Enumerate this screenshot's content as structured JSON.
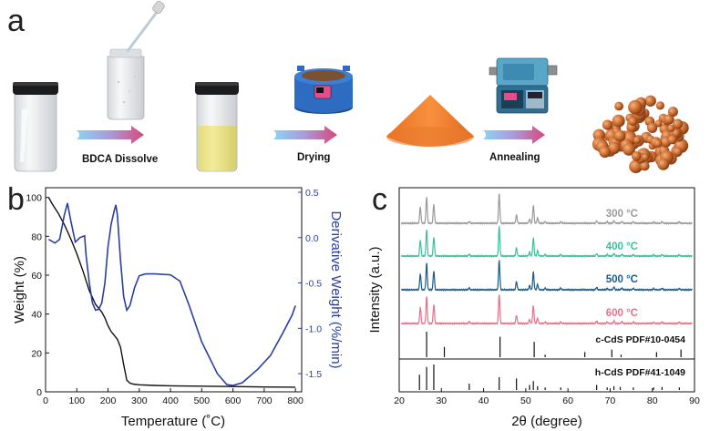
{
  "panels": {
    "a": "a",
    "b": "b",
    "c": "c"
  },
  "synthesis": {
    "steps": [
      "BDCA Dissolve",
      "Drying",
      "Annealing"
    ]
  },
  "colors": {
    "tga": "#111111",
    "dtg": "#2b3f9c",
    "xrd_300": "#9a9a9a",
    "xrd_400": "#3fbf99",
    "xrd_500": "#1f5a86",
    "xrd_600": "#e2738a",
    "arrow_start": "#8fd3f0",
    "arrow_end": "#d9487a",
    "cone": "#f07a2c",
    "particle": "#c0622a"
  },
  "chart_data": [
    {
      "type": "line",
      "title": "",
      "xlabel": "Temperature (˚C)",
      "ylabel": "Weight (%)",
      "y2label": "Derivative Weight (%/min)",
      "xlim": [
        0,
        820
      ],
      "ylim": [
        0,
        105
      ],
      "y2lim": [
        -1.7,
        0.55
      ],
      "xticks": [
        "0",
        "100",
        "200",
        "300",
        "400",
        "500",
        "600",
        "700",
        "800"
      ],
      "yticks": [
        "0",
        "20",
        "40",
        "60",
        "80",
        "100"
      ],
      "y2ticks": [
        "0.5",
        "0.0",
        "-0.5",
        "-1.0",
        "-1.5"
      ],
      "series": [
        {
          "name": "Weight",
          "axis": "left",
          "x": [
            10,
            20,
            40,
            60,
            80,
            100,
            120,
            140,
            160,
            170,
            180,
            190,
            200,
            210,
            220,
            230,
            240,
            250,
            260,
            270,
            280,
            300,
            350,
            400,
            500,
            600,
            700,
            800
          ],
          "values": [
            100,
            97,
            92,
            86,
            79,
            71,
            62,
            52,
            45,
            43,
            41,
            38,
            34,
            31,
            29,
            27,
            23,
            14,
            6,
            4.5,
            4,
            3.6,
            3.3,
            3.1,
            2.9,
            2.7,
            2.5,
            2.4
          ]
        },
        {
          "name": "Derivative Weight",
          "axis": "right",
          "x": [
            10,
            30,
            45,
            60,
            70,
            80,
            95,
            110,
            125,
            130,
            140,
            150,
            160,
            170,
            180,
            190,
            200,
            210,
            220,
            225,
            230,
            240,
            250,
            260,
            270,
            285,
            300,
            320,
            350,
            400,
            430,
            460,
            500,
            550,
            580,
            600,
            630,
            680,
            720,
            760,
            790,
            800
          ],
          "values": [
            -0.02,
            -0.06,
            -0.02,
            0.25,
            0.38,
            0.2,
            -0.05,
            0.0,
            0.02,
            -0.2,
            -0.5,
            -0.72,
            -0.8,
            -0.79,
            -0.72,
            -0.5,
            -0.1,
            0.15,
            0.3,
            0.36,
            0.25,
            -0.25,
            -0.65,
            -0.8,
            -0.75,
            -0.55,
            -0.42,
            -0.4,
            -0.4,
            -0.41,
            -0.48,
            -0.75,
            -1.15,
            -1.5,
            -1.62,
            -1.63,
            -1.6,
            -1.45,
            -1.3,
            -1.05,
            -0.85,
            -0.75
          ]
        }
      ]
    },
    {
      "type": "line",
      "title": "",
      "xlabel": "2θ (degree)",
      "ylabel": "Intensity (a.u.)",
      "xlim": [
        20,
        90
      ],
      "xticks": [
        "20",
        "30",
        "40",
        "50",
        "60",
        "70",
        "80",
        "90"
      ],
      "series": [
        {
          "name": "300 °C",
          "color": "#9a9a9a"
        },
        {
          "name": "400 °C",
          "color": "#3fbf99"
        },
        {
          "name": "500 °C",
          "color": "#1f5a86"
        },
        {
          "name": "600 °C",
          "color": "#e2738a"
        }
      ],
      "peaks": [
        {
          "x": 25.0,
          "h": 0.55
        },
        {
          "x": 26.5,
          "h": 0.9
        },
        {
          "x": 28.2,
          "h": 0.65
        },
        {
          "x": 36.6,
          "h": 0.06
        },
        {
          "x": 43.7,
          "h": 1.0
        },
        {
          "x": 47.8,
          "h": 0.28
        },
        {
          "x": 50.9,
          "h": 0.14
        },
        {
          "x": 51.8,
          "h": 0.6
        },
        {
          "x": 52.8,
          "h": 0.18
        },
        {
          "x": 54.6,
          "h": 0.05
        },
        {
          "x": 58.3,
          "h": 0.05
        },
        {
          "x": 66.8,
          "h": 0.08
        },
        {
          "x": 69.3,
          "h": 0.05
        },
        {
          "x": 70.9,
          "h": 0.09
        },
        {
          "x": 72.8,
          "h": 0.06
        },
        {
          "x": 75.5,
          "h": 0.05
        },
        {
          "x": 80.3,
          "h": 0.04
        },
        {
          "x": 82.3,
          "h": 0.05
        },
        {
          "x": 86.4,
          "h": 0.04
        }
      ],
      "references": [
        {
          "name": "c-CdS PDF#10-0454",
          "x": [
            26.5,
            30.7,
            43.9,
            52.0,
            54.6,
            64.0,
            70.4,
            72.6,
            81.0,
            86.8
          ],
          "values": [
            1.0,
            0.4,
            0.8,
            0.6,
            0.1,
            0.2,
            0.3,
            0.1,
            0.2,
            0.3
          ]
        },
        {
          "name": "h-CdS PDF#41-1049",
          "x": [
            24.8,
            26.5,
            28.2,
            36.6,
            43.7,
            47.8,
            50.9,
            51.8,
            52.8,
            54.6,
            58.3,
            66.8,
            69.3,
            70.9,
            72.4,
            75.5,
            80.3,
            82.3,
            86.4
          ],
          "values": [
            0.6,
            0.9,
            1.0,
            0.25,
            0.5,
            0.45,
            0.2,
            0.35,
            0.15,
            0.1,
            0.1,
            0.2,
            0.1,
            0.15,
            0.12,
            0.1,
            0.1,
            0.12,
            0.1
          ]
        }
      ]
    }
  ]
}
